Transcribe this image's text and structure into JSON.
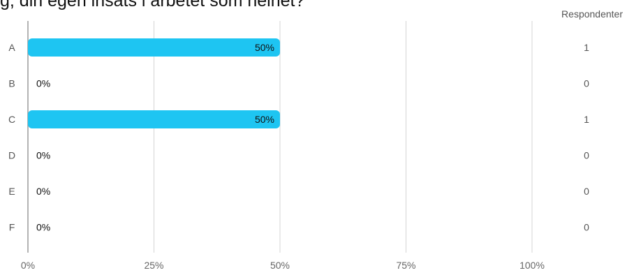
{
  "title": "g, din egen insats i arbetet som helhet?",
  "respondents_header": "Respondenter",
  "colors": {
    "bar": "#1ec5f2",
    "grid": "#d4d4d4",
    "axis": "#9a9a9a"
  },
  "chart_data": {
    "type": "bar",
    "orientation": "horizontal",
    "categories": [
      "A",
      "B",
      "C",
      "D",
      "E",
      "F"
    ],
    "values": [
      50,
      0,
      50,
      0,
      0,
      0
    ],
    "value_labels": [
      "50%",
      "0%",
      "50%",
      "0%",
      "0%",
      "0%"
    ],
    "respondents": [
      1,
      0,
      1,
      0,
      0,
      0
    ],
    "xlim": [
      0,
      100
    ],
    "xticks": [
      "0%",
      "25%",
      "50%",
      "75%",
      "100%"
    ],
    "grid": true
  }
}
